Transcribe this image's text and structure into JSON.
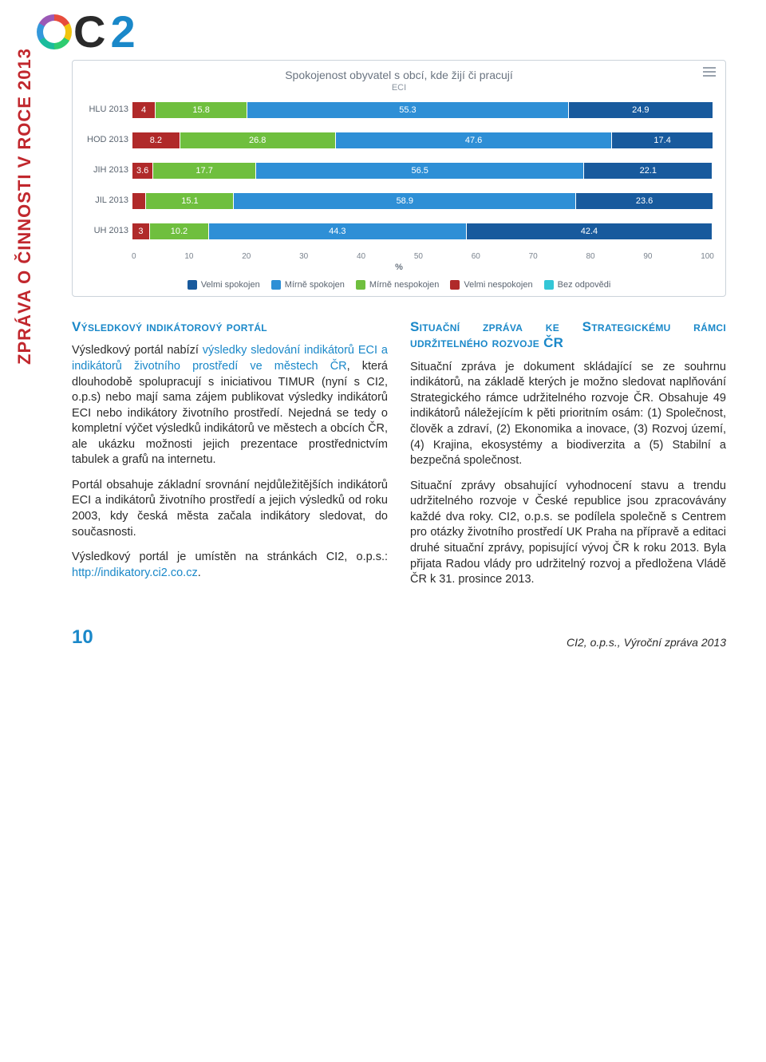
{
  "side_title": "ZPRÁVA O ČINNOSTI V ROCE 2013",
  "logo": {
    "c": "C",
    "two": "2"
  },
  "chart": {
    "type": "stacked-bar-horizontal",
    "title": "Spokojenost obyvatel s obcí, kde žijí či pracují",
    "subtitle": "ECI",
    "xlabel": "%",
    "xlim": [
      0,
      100
    ],
    "xtick_step": 10,
    "xticks": [
      "0",
      "10",
      "20",
      "30",
      "40",
      "50",
      "60",
      "70",
      "80",
      "90",
      "100"
    ],
    "background_color": "#ffffff",
    "grid_color": "#cbd3da",
    "label_color": "#5a6470",
    "bar_border": "#ffffff",
    "categories": [
      "HLU 2013",
      "HOD 2013",
      "JIH 2013",
      "JIL 2013",
      "UH 2013"
    ],
    "series": [
      {
        "name": "Velmi spokojen",
        "color": "#185a9d",
        "text": "#ffffff"
      },
      {
        "name": "Mírně spokojen",
        "color": "#2e8fd6",
        "text": "#ffffff"
      },
      {
        "name": "Mírně nespokojen",
        "color": "#6fbf3e",
        "text": "#ffffff"
      },
      {
        "name": "Velmi nespokojen",
        "color": "#b02a2a",
        "text": "#ffffff"
      },
      {
        "name": "Bez odpovědi",
        "color": "#33c6d6",
        "text": "#ffffff"
      }
    ],
    "rows": [
      {
        "label": "HLU 2013",
        "segs": [
          {
            "v": 4,
            "color": "#b02a2a"
          },
          {
            "v": 15.8,
            "color": "#6fbf3e"
          },
          {
            "v": 55.3,
            "color": "#2e8fd6"
          },
          {
            "v": 24.9,
            "color": "#185a9d"
          }
        ]
      },
      {
        "label": "HOD 2013",
        "segs": [
          {
            "v": 8.2,
            "color": "#b02a2a"
          },
          {
            "v": 26.8,
            "color": "#6fbf3e"
          },
          {
            "v": 47.6,
            "color": "#2e8fd6"
          },
          {
            "v": 17.4,
            "color": "#185a9d"
          }
        ]
      },
      {
        "label": "JIH 2013",
        "segs": [
          {
            "v": 3.6,
            "color": "#b02a2a"
          },
          {
            "v": 17.7,
            "color": "#6fbf3e"
          },
          {
            "v": 56.5,
            "color": "#2e8fd6"
          },
          {
            "v": 22.1,
            "color": "#185a9d"
          }
        ]
      },
      {
        "label": "JIL 2013",
        "segs": [
          {
            "v": 2.4,
            "color": "#b02a2a",
            "hide": true
          },
          {
            "v": 15.1,
            "color": "#6fbf3e"
          },
          {
            "v": 58.9,
            "color": "#2e8fd6"
          },
          {
            "v": 23.6,
            "color": "#185a9d"
          }
        ]
      },
      {
        "label": "UH 2013",
        "segs": [
          {
            "v": 3,
            "color": "#b02a2a"
          },
          {
            "v": 10.2,
            "color": "#6fbf3e"
          },
          {
            "v": 44.3,
            "color": "#2e8fd6"
          },
          {
            "v": 42.4,
            "color": "#185a9d"
          }
        ]
      }
    ]
  },
  "left": {
    "heading": "Výsledkový indikátorový portál",
    "p1a": "Výsledkový portál nabízí ",
    "p1_link": "výsledky sledování indikátorů ECI a indiká­torů životního prostředí ve městech ČR",
    "p1b": ", která dlouhodobě spolupracují s iniciativou TIMUR (nyní s CI2, o.p.s) nebo mají sama zájem publikovat výsledky indikátorů ECI nebo indi­kátory životního prostředí. Nejedná se tedy o kompletní výčet výsledků indikátorů ve městech a obcích ČR, ale ukázku možnosti jejich prezenta­ce prostřednictvím tabulek a grafů na internetu.",
    "p2": "Portál obsahuje základní srovnání nejdůležitějších indikátorů ECI a in­dikátorů životního prostředí a jejich výsledků od roku 2003, kdy česká města začala indikátory sledovat, do současnosti.",
    "p3a": "Výsledkový portál je umístěn na stránkách CI2, o.p.s.: ",
    "p3_link": "http://indika­tory.ci2.co.cz",
    "p3b": "."
  },
  "right": {
    "heading": "Situační zpráva ke Strate­gickému rámci udržitelného rozvoje ČR",
    "p1": "Situační zpráva je dokument sklá­dající se ze souhrnu indikátorů, na základě kterých je možno sledovat naplňování Strategického rámce udr­žitelného rozvoje ČR. Obsahuje 49 indikátorů náležejícím k pěti priorit­ním osám: (1) Společnost, člověk a zdraví, (2) Ekonomika a inovace, (3) Rozvoj území, (4) Krajina, eko­systémy a biodiverzita a (5) Stabilní a bezpečná společnost.",
    "p2": "Situační zprávy obsahující vyhod­nocení stavu a trendu udržitelného rozvoje v České republice jsou zpra­covávány každé dva roky. CI2, o.p.s. se podílela společně s Centrem pro otázky životního prostředí UK Praha na přípravě a editaci druhé situační zprávy, popisující vývoj ČR k roku 2013. Byla přijata Radou vlády pro udržitelný rozvoj a předložena Vládě ČR k 31. prosince 2013."
  },
  "footer": {
    "page": "10",
    "right": "CI2, o.p.s., Výroční zpráva 2013"
  }
}
